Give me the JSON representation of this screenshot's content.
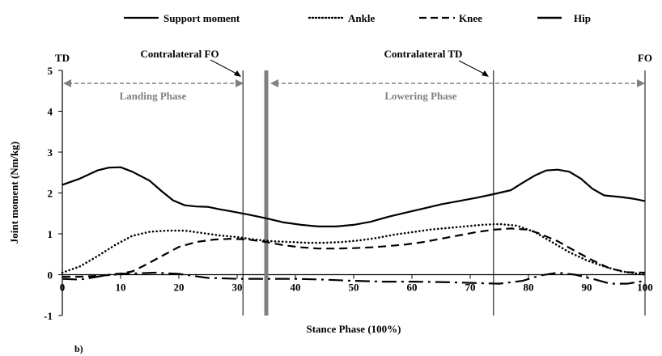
{
  "chart_data": {
    "type": "line",
    "xlabel": "Stance Phase (100%)",
    "ylabel": "Joint moment (Nm/kg)",
    "xlim": [
      0,
      100
    ],
    "ylim": [
      -1,
      5
    ],
    "xticks": [
      0,
      10,
      20,
      30,
      40,
      50,
      60,
      70,
      80,
      90,
      100
    ],
    "yticks": [
      -1,
      0,
      1,
      2,
      3,
      4,
      5
    ],
    "grid": false,
    "legend_position": "top",
    "panel_label": "b)",
    "annotations": {
      "td": "TD",
      "fo": "FO",
      "contralateral_fo": "Contralateral FO",
      "contralateral_td": "Contralateral TD",
      "landing_phase": "Landing Phase",
      "lowering_phase": "Lowering Phase"
    },
    "vertical_lines": [
      {
        "x": 0,
        "name": "TD"
      },
      {
        "x": 31,
        "name": "Contralateral FO"
      },
      {
        "x": 35,
        "name": "phase divider"
      },
      {
        "x": 74,
        "name": "Contralateral TD"
      },
      {
        "x": 100,
        "name": "FO"
      }
    ],
    "series": [
      {
        "name": "Support moment",
        "style": "solid",
        "color": "#000000",
        "x": [
          0,
          3,
          6,
          8,
          10,
          12,
          15,
          17,
          19,
          21,
          23,
          25,
          27,
          29,
          32,
          35,
          38,
          41,
          44,
          47,
          50,
          53,
          56,
          59,
          62,
          65,
          68,
          71,
          74,
          77,
          79,
          81,
          83,
          85,
          87,
          89,
          91,
          93,
          96,
          98,
          100
        ],
        "values": [
          2.2,
          2.35,
          2.55,
          2.62,
          2.63,
          2.52,
          2.3,
          2.05,
          1.82,
          1.7,
          1.67,
          1.66,
          1.6,
          1.55,
          1.47,
          1.38,
          1.28,
          1.22,
          1.18,
          1.18,
          1.22,
          1.3,
          1.42,
          1.52,
          1.62,
          1.72,
          1.8,
          1.88,
          1.97,
          2.07,
          2.25,
          2.42,
          2.55,
          2.57,
          2.52,
          2.35,
          2.1,
          1.94,
          1.9,
          1.86,
          1.8
        ]
      },
      {
        "name": "Ankle",
        "style": "dotted",
        "color": "#000000",
        "x": [
          0,
          3,
          6,
          9,
          12,
          15,
          18,
          21,
          24,
          27,
          30,
          33,
          36,
          39,
          42,
          45,
          48,
          51,
          54,
          57,
          60,
          63,
          66,
          69,
          72,
          75,
          78,
          81,
          84,
          87,
          90,
          93,
          96,
          100
        ],
        "values": [
          0.05,
          0.2,
          0.45,
          0.72,
          0.95,
          1.05,
          1.08,
          1.08,
          1.02,
          0.96,
          0.92,
          0.86,
          0.82,
          0.8,
          0.78,
          0.78,
          0.8,
          0.84,
          0.9,
          0.98,
          1.04,
          1.1,
          1.14,
          1.18,
          1.22,
          1.24,
          1.2,
          1.05,
          0.8,
          0.55,
          0.35,
          0.2,
          0.08,
          0.0
        ]
      },
      {
        "name": "Knee",
        "style": "dashed",
        "color": "#000000",
        "x": [
          0,
          3,
          6,
          9,
          12,
          14,
          17,
          20,
          23,
          26,
          29,
          32,
          35,
          38,
          41,
          44,
          47,
          50,
          53,
          56,
          59,
          62,
          65,
          68,
          71,
          74,
          77,
          80,
          82,
          85,
          88,
          91,
          94,
          97,
          100
        ],
        "values": [
          -0.05,
          -0.05,
          -0.03,
          0.0,
          0.08,
          0.22,
          0.45,
          0.68,
          0.8,
          0.86,
          0.88,
          0.86,
          0.8,
          0.72,
          0.67,
          0.64,
          0.64,
          0.65,
          0.67,
          0.7,
          0.74,
          0.8,
          0.88,
          0.96,
          1.04,
          1.1,
          1.13,
          1.1,
          1.0,
          0.82,
          0.58,
          0.35,
          0.15,
          0.06,
          0.05
        ]
      },
      {
        "name": "Hip",
        "style": "dashdot",
        "color": "#000000",
        "x": [
          0,
          3,
          6,
          9,
          12,
          16,
          20,
          25,
          30,
          35,
          40,
          45,
          50,
          55,
          60,
          65,
          70,
          75,
          79,
          82,
          85,
          88,
          91,
          94,
          97,
          100
        ],
        "values": [
          -0.1,
          -0.12,
          -0.05,
          0.02,
          0.03,
          0.05,
          0.02,
          -0.08,
          -0.1,
          -0.1,
          -0.1,
          -0.12,
          -0.15,
          -0.17,
          -0.17,
          -0.18,
          -0.2,
          -0.22,
          -0.15,
          -0.02,
          0.05,
          0.0,
          -0.1,
          -0.22,
          -0.22,
          -0.15
        ]
      }
    ]
  }
}
